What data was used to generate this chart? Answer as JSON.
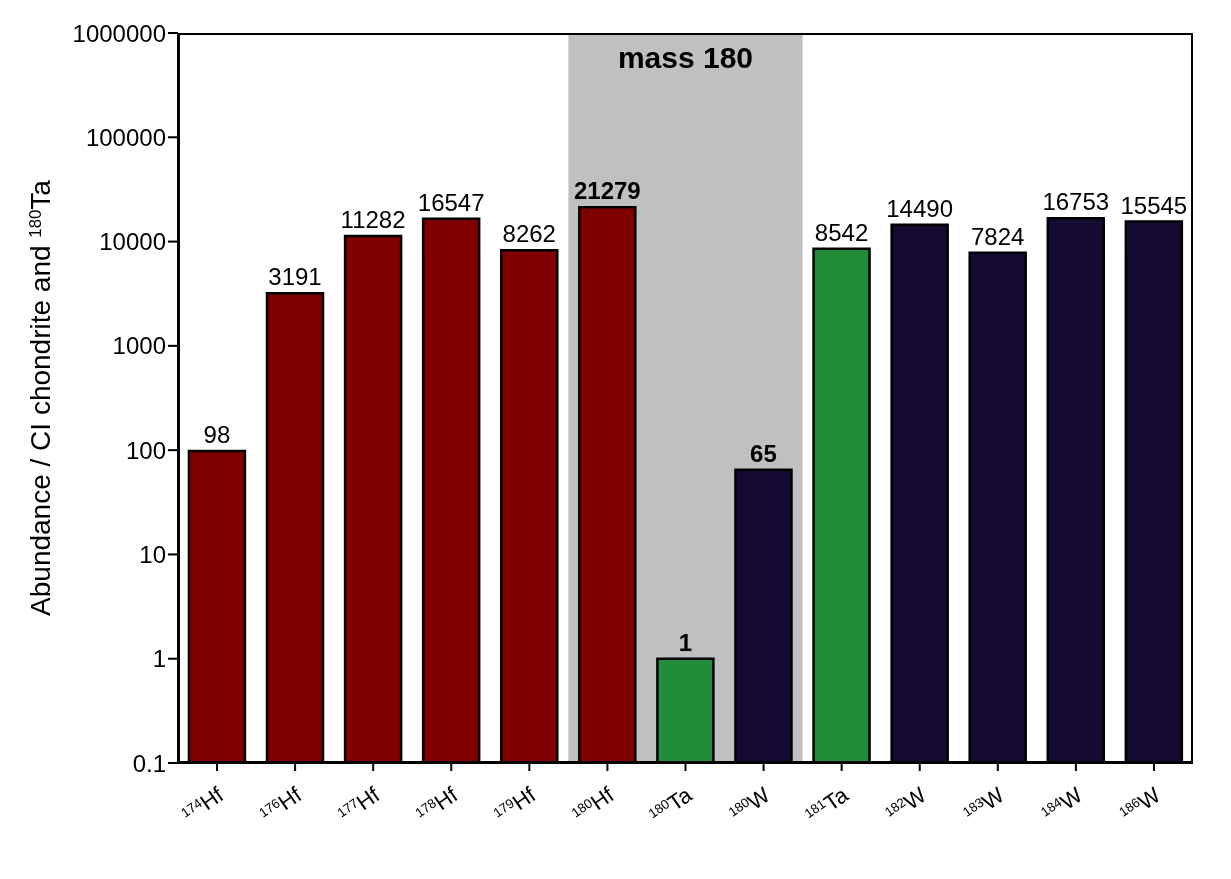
{
  "chart_data": {
    "type": "bar",
    "ylabel": "Abundance / CI chondrite and $^{180}$Ta",
    "categories": [
      "$^{174}$Hf",
      "$^{176}$Hf",
      "$^{177}$Hf",
      "$^{178}$Hf",
      "$^{179}$Hf",
      "$^{180}$Hf",
      "$^{180}$Ta",
      "$^{180}$W",
      "$^{181}$Ta",
      "$^{182}$W",
      "$^{183}$W",
      "$^{184}$W",
      "$^{186}$W"
    ],
    "values": [
      98,
      3191,
      11282,
      16547,
      8262,
      21279,
      1,
      65,
      8542,
      14490,
      7824,
      16753,
      15545
    ],
    "colors": [
      "#800000",
      "#800000",
      "#800000",
      "#800000",
      "#800000",
      "#800000",
      "#218c3a",
      "#140a32",
      "#218c3a",
      "#140a32",
      "#140a32",
      "#140a32",
      "#140a32"
    ],
    "log": "y",
    "ylim": [
      0.1,
      1000000
    ],
    "yticks": [
      0.1,
      1,
      10,
      100,
      1000,
      10000,
      100000,
      1000000
    ],
    "bands": [
      {
        "axis": "x",
        "from": "$^{180}$Hf",
        "to": "$^{180}$W",
        "label": "mass 180",
        "color": "#c0c0c0"
      }
    ],
    "data_labels": true
  }
}
